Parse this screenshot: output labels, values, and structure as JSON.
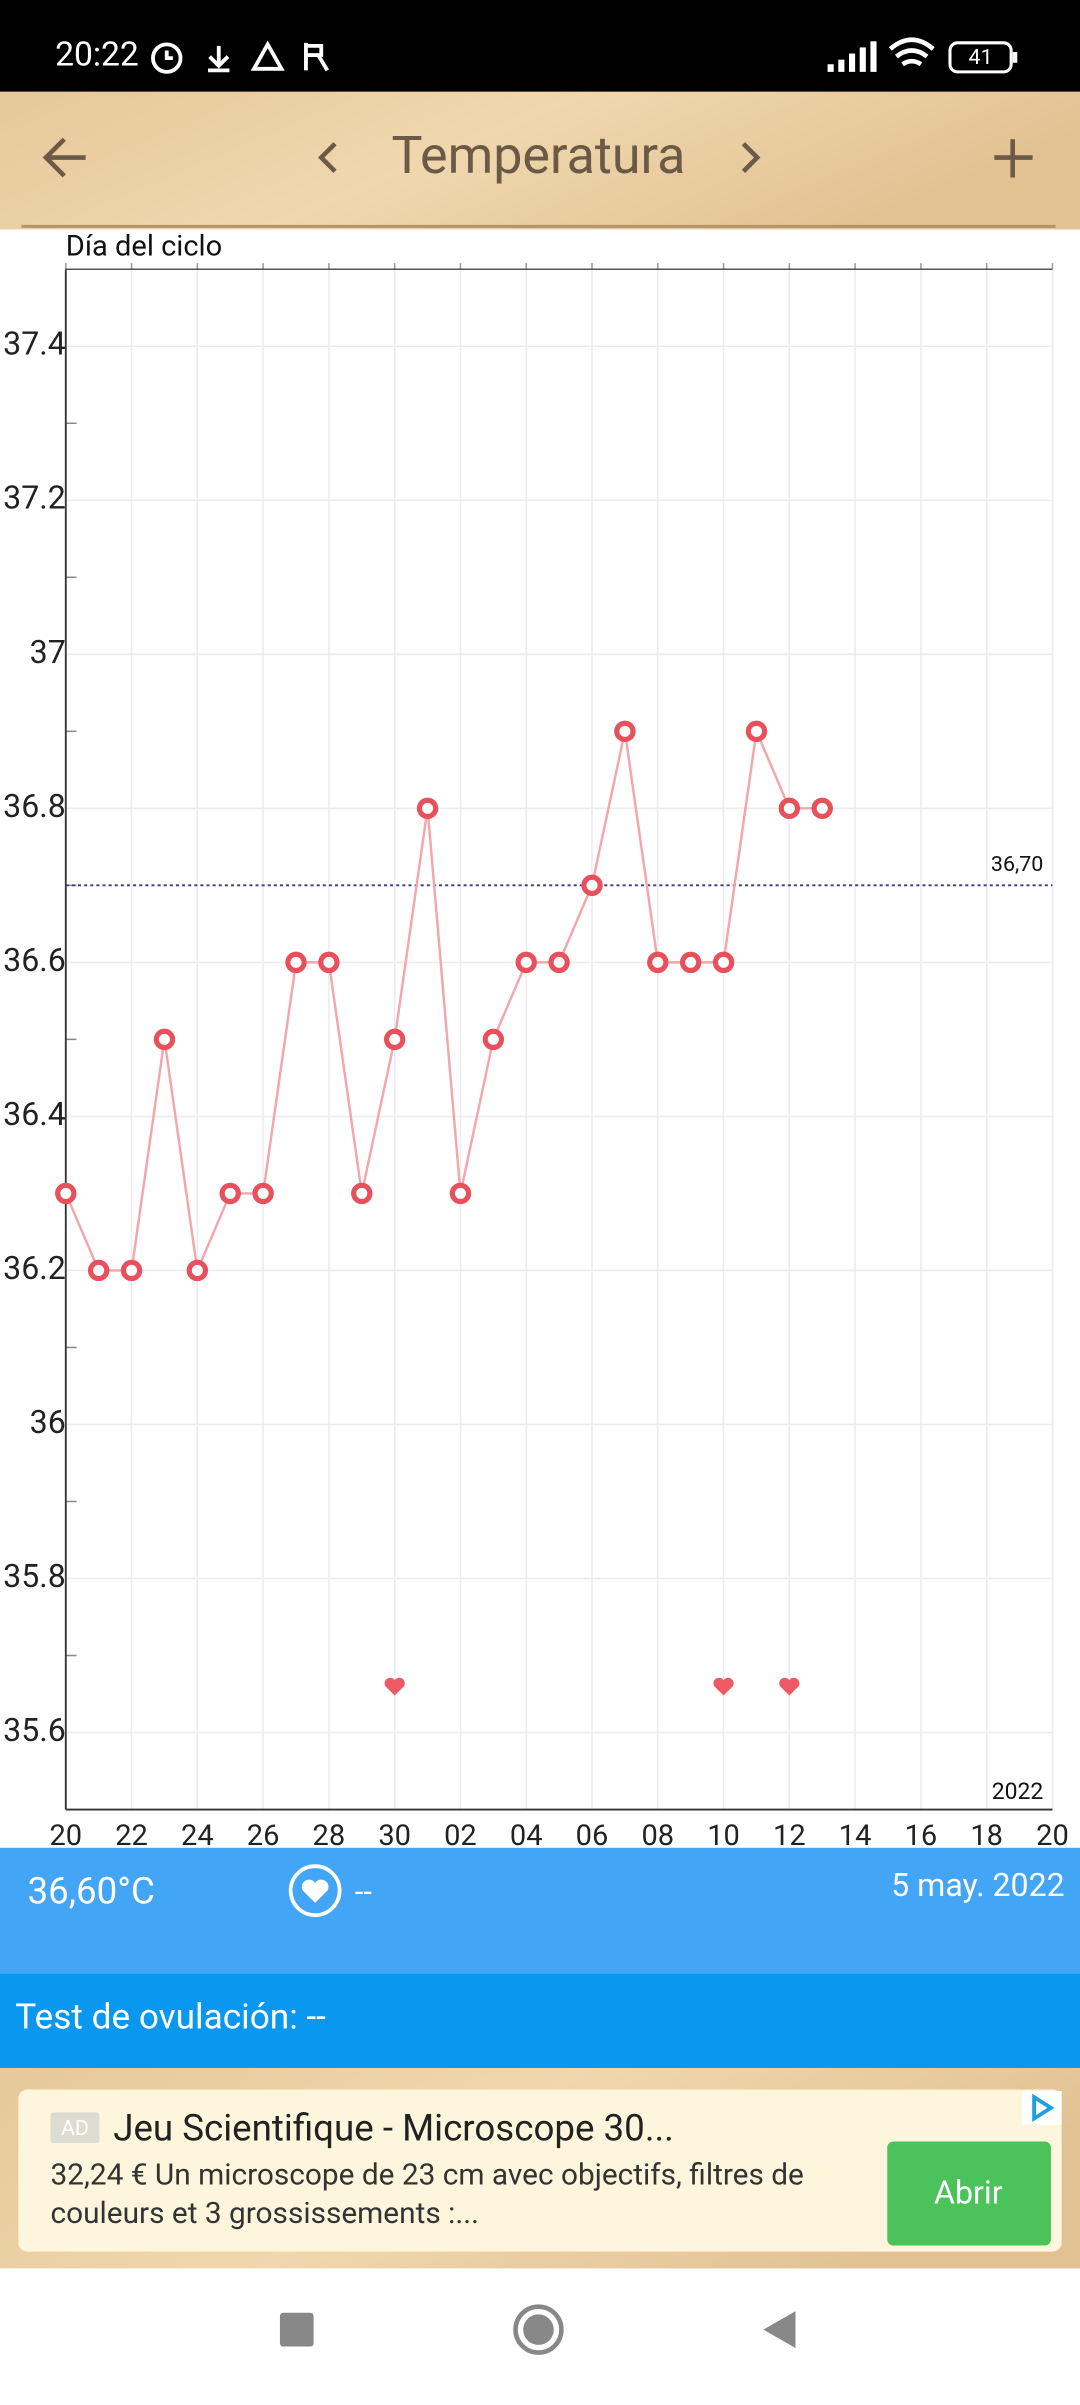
{
  "status_bar": {
    "time": "20:22",
    "battery": "41"
  },
  "header": {
    "title": "Temperatura"
  },
  "chart_data": {
    "type": "line",
    "x_label": "Día del ciclo",
    "categories": [
      "20",
      null,
      "22",
      null,
      "24",
      null,
      "26",
      null,
      "28",
      null,
      "30",
      null,
      "02",
      null,
      "04",
      null,
      "06",
      null,
      "08",
      null,
      "10",
      null,
      "12",
      null,
      "14",
      null,
      "16",
      null,
      "18",
      null,
      "20"
    ],
    "series": [
      {
        "color": "#e8505b",
        "line_color": "#f2a7ab",
        "values": [
          36.3,
          36.2,
          36.2,
          36.5,
          36.2,
          36.3,
          36.3,
          36.6,
          36.6,
          36.3,
          36.5,
          36.8,
          36.3,
          36.5,
          36.6,
          36.6,
          36.7,
          36.9,
          36.6,
          36.6,
          36.6,
          36.9,
          36.8,
          36.8,
          null,
          null,
          null,
          null,
          null,
          null,
          null
        ]
      }
    ],
    "hearts": {
      "color": "#ee5a64",
      "values": [
        null,
        null,
        null,
        null,
        null,
        null,
        null,
        null,
        null,
        null,
        35.66,
        null,
        null,
        null,
        null,
        null,
        null,
        null,
        null,
        null,
        35.66,
        null,
        35.66,
        null,
        null,
        null,
        null,
        null,
        null,
        null,
        null
      ]
    },
    "ylim": [
      35.5,
      37.5
    ],
    "yticks": [
      35.6,
      35.8,
      36,
      36.2,
      36.4,
      36.6,
      36.8,
      37,
      37.2,
      37.4
    ],
    "yminorticks": [
      35.7,
      35.9,
      36.1,
      36.3,
      36.5,
      36.7,
      36.9,
      37.1,
      37.3
    ],
    "reference": {
      "value": 36.7,
      "label": "36,70",
      "color": "#3a3a8a"
    },
    "year_label": "2022",
    "grid": true
  },
  "info": {
    "temperature": "36,60°C",
    "heart": "--",
    "date": "5 may. 2022"
  },
  "ovulation": {
    "text": "Test de ovulación: --"
  },
  "ad": {
    "badge": "AD",
    "title": "Jeu Scientifique - Microscope 30...",
    "body": [
      "32,24 € Un microscope de 23 cm avec objectifs, filtres de",
      "couleurs et 3 grossissements :..."
    ],
    "button": "Abrir"
  }
}
